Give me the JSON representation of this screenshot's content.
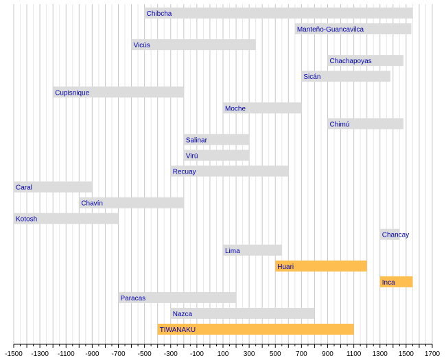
{
  "chart_data": {
    "type": "bar",
    "orientation": "horizontal",
    "grid": true,
    "xlim": [
      -1500,
      1700
    ],
    "x_ticks": [
      -1500,
      -1300,
      -1100,
      -900,
      -700,
      -500,
      -300,
      -100,
      100,
      300,
      500,
      700,
      900,
      1100,
      1300,
      1500,
      1700
    ],
    "x_tick_labels": [
      "-1500",
      "-1300",
      "-1100",
      "-900",
      "-700",
      "-500",
      "-300",
      "-100",
      "100",
      "300",
      "500",
      "700",
      "900",
      "1100",
      "1300",
      "1500",
      "1700"
    ],
    "colors": {
      "default": "#dcdcdc",
      "highlight": "#ffbe50",
      "label": "#0000b0",
      "grid": "#cccccc",
      "axis": "#000000"
    },
    "bars": [
      {
        "label": "Chibcha",
        "start": -500,
        "end": 1550,
        "highlight": false
      },
      {
        "label": "Manteño-Guancavilca",
        "start": 650,
        "end": 1540,
        "highlight": false
      },
      {
        "label": "Vicús",
        "start": -600,
        "end": 350,
        "highlight": false
      },
      {
        "label": "Chachapoyas",
        "start": 900,
        "end": 1480,
        "highlight": false
      },
      {
        "label": "Sicán",
        "start": 700,
        "end": 1380,
        "highlight": false
      },
      {
        "label": "Cupisnique",
        "start": -1200,
        "end": -200,
        "highlight": false
      },
      {
        "label": "Moche",
        "start": 100,
        "end": 700,
        "highlight": false
      },
      {
        "label": "Chimú",
        "start": 900,
        "end": 1480,
        "highlight": false
      },
      {
        "label": "Salinar",
        "start": -200,
        "end": 300,
        "highlight": false
      },
      {
        "label": "Virú",
        "start": -200,
        "end": 300,
        "highlight": false
      },
      {
        "label": "Recuay",
        "start": -300,
        "end": 600,
        "highlight": false
      },
      {
        "label": "Caral",
        "start": -1500,
        "end": -900,
        "highlight": false
      },
      {
        "label": "Chavín",
        "start": -1000,
        "end": -200,
        "highlight": false
      },
      {
        "label": "Kotosh",
        "start": -1500,
        "end": -700,
        "highlight": false
      },
      {
        "label": "Chancay",
        "start": 1300,
        "end": 1450,
        "highlight": false
      },
      {
        "label": "Lima",
        "start": 100,
        "end": 550,
        "highlight": false
      },
      {
        "label": "Huari",
        "start": 500,
        "end": 1200,
        "highlight": true
      },
      {
        "label": "Inca",
        "start": 1300,
        "end": 1550,
        "highlight": true
      },
      {
        "label": "Paracas",
        "start": -700,
        "end": 200,
        "highlight": false
      },
      {
        "label": "Nazca",
        "start": -300,
        "end": 800,
        "highlight": false
      },
      {
        "label": "TIWANAKU",
        "start": -400,
        "end": 1100,
        "highlight": true
      }
    ]
  }
}
